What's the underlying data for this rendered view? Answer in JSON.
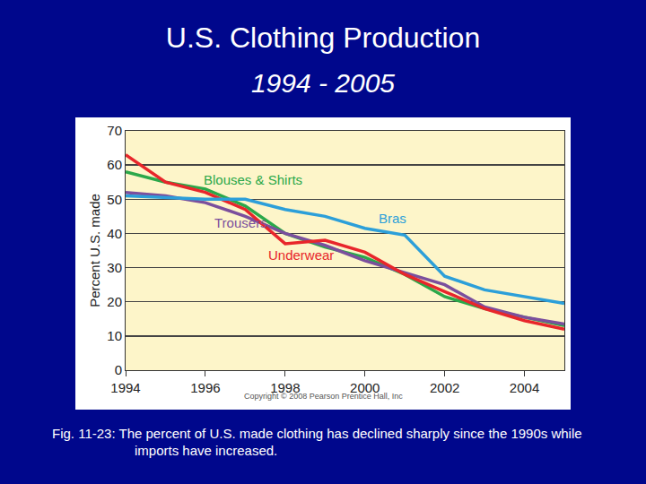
{
  "chart_data": {
    "type": "line",
    "title": "U.S. Clothing Production",
    "subtitle": "1994 - 2005",
    "y_label": "Percent U.S. made",
    "annotations": [
      "Copyright © 2008 Pearson Prentice Hall, Inc"
    ],
    "caption": "Fig. 11-23: The percent of U.S. made clothing has declined sharply since the 1990s while imports have increased.",
    "x": [
      1994,
      1995,
      1996,
      1997,
      1998,
      1999,
      2000,
      2001,
      2002,
      2003,
      2004,
      2005
    ],
    "series": [
      {
        "name": "Blouses & Shirts",
        "color": "#2ba84a",
        "values": [
          58,
          55,
          53,
          48,
          40,
          36,
          33,
          28,
          21.5,
          18,
          15.5,
          13
        ]
      },
      {
        "name": "Trousers",
        "color": "#7b4f9d",
        "values": [
          52,
          51,
          49,
          45,
          40,
          36.5,
          32,
          28.5,
          25,
          18.5,
          15.5,
          13.5
        ]
      },
      {
        "name": "Underwear",
        "color": "#e8262b",
        "values": [
          63,
          55,
          52,
          47,
          37,
          38,
          34.5,
          28,
          23,
          18,
          14.5,
          12
        ]
      },
      {
        "name": "Bras",
        "color": "#2c9fd9",
        "values": [
          51,
          50.5,
          50,
          50,
          47,
          45,
          41.5,
          39.5,
          27.5,
          23.5,
          21.5,
          19.5
        ]
      }
    ],
    "xlim": [
      1994,
      2005
    ],
    "xticks": [
      1994,
      1996,
      1998,
      2000,
      2002,
      2004
    ],
    "ylim": [
      0,
      70
    ],
    "yticks": [
      0,
      10,
      20,
      30,
      40,
      50,
      60,
      70
    ],
    "grid": true
  }
}
